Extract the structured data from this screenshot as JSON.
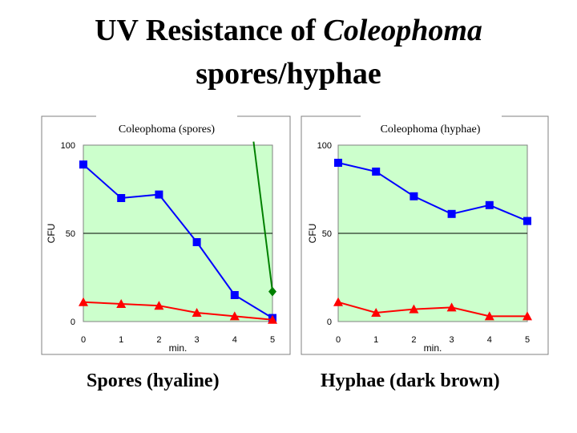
{
  "slide": {
    "title_line1_a": "UV Resistance of ",
    "title_line1_b": "Coleophoma",
    "title_line2": "spores/hyphae",
    "caption_left": "Spores (hyaline)",
    "caption_right": "Hyphae (dark brown)"
  },
  "colors": {
    "plot_bg": "#ccffcc",
    "blue": "#0000ff",
    "red": "#ff0000",
    "green": "#008000"
  },
  "chart_data": [
    {
      "type": "line",
      "title": "Coleophoma (spores)",
      "xlabel": "min.",
      "ylabel": "CFU",
      "x": [
        0,
        1,
        2,
        3,
        4,
        5
      ],
      "xticks": [
        "0",
        "1",
        "2",
        "3",
        "4",
        "5"
      ],
      "yticks": [
        "0",
        "50",
        "100"
      ],
      "ylim": [
        0,
        100
      ],
      "grid": "horizontal at 50",
      "series": [
        {
          "color": "#0000ff",
          "marker": "square",
          "x": [
            0,
            1,
            2,
            3,
            4,
            5
          ],
          "y": [
            89,
            70,
            72,
            45,
            15,
            2
          ]
        },
        {
          "color": "#ff0000",
          "marker": "triangle",
          "x": [
            0,
            1,
            2,
            3,
            4,
            5
          ],
          "y": [
            11,
            10,
            9,
            5,
            3,
            1
          ]
        },
        {
          "color": "#008000",
          "marker": "diamond",
          "x": [
            4.5,
            5
          ],
          "y": [
            102,
            17
          ]
        }
      ]
    },
    {
      "type": "line",
      "title": "Coleophoma (hyphae)",
      "xlabel": "min.",
      "ylabel": "CFU",
      "x": [
        0,
        1,
        2,
        3,
        4,
        5
      ],
      "xticks": [
        "0",
        "1",
        "2",
        "3",
        "4",
        "5"
      ],
      "yticks": [
        "0",
        "50",
        "100"
      ],
      "ylim": [
        0,
        100
      ],
      "grid": "horizontal at 50",
      "series": [
        {
          "color": "#0000ff",
          "marker": "square",
          "x": [
            0,
            1,
            2,
            3,
            4,
            5
          ],
          "y": [
            90,
            85,
            71,
            61,
            66,
            57
          ]
        },
        {
          "color": "#ff0000",
          "marker": "triangle",
          "x": [
            0,
            1,
            2,
            3,
            4,
            5
          ],
          "y": [
            11,
            5,
            7,
            8,
            3,
            3
          ]
        }
      ]
    }
  ]
}
